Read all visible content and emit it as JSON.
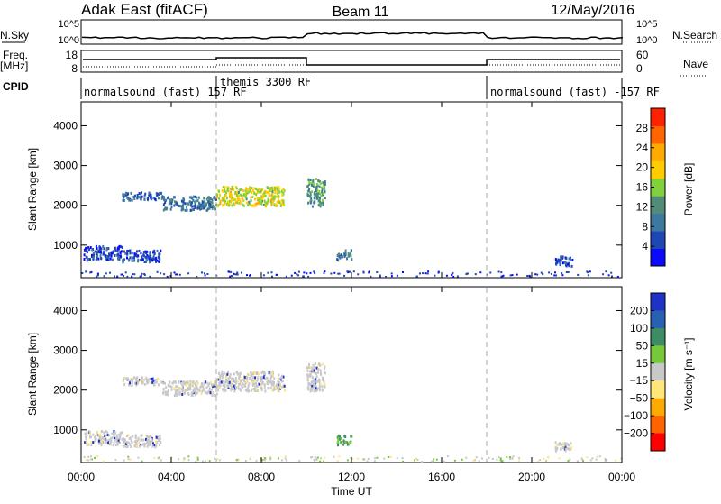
{
  "header": {
    "radar": "Adak East (fitACF)",
    "beam": "Beam 11",
    "date": "12/May/2016"
  },
  "strip_labels": {
    "nsky": "N.Sky",
    "nsky_ticks": [
      "10^5",
      "10^0"
    ],
    "nsearch": "N.Search",
    "nsearch_ticks": [
      "10^5",
      "10^0"
    ],
    "freq_line1": "Freq.",
    "freq_line2": "[MHz]",
    "freq_ticks": [
      "18",
      "8"
    ],
    "nave": "Nave",
    "nave_ticks": [
      "60",
      "0"
    ],
    "cpid": "CPID"
  },
  "cpid_segments": [
    {
      "label": "normalsound (fast) 157 RF",
      "start_hour": 0
    },
    {
      "label": "themis 3300 RF",
      "start_hour": 6
    },
    {
      "label": "normalsound (fast) -157 RF",
      "start_hour": 18
    }
  ],
  "chart_data": [
    {
      "type": "heatmap",
      "title": "",
      "xlabel": "",
      "ylabel": "Slant Range [km]",
      "xlim": [
        0,
        24
      ],
      "ylim": [
        180,
        4600
      ],
      "ytick_labels": [
        "1000",
        "2000",
        "3000",
        "4000"
      ],
      "yticks": [
        1000,
        2000,
        3000,
        4000
      ],
      "colorbar": {
        "label": "Power [dB]",
        "ticks": [
          4,
          8,
          12,
          16,
          20,
          24,
          28
        ],
        "range": [
          0,
          32
        ],
        "colors": [
          "#0a0aff",
          "#1e46b4",
          "#3c78a0",
          "#508c78",
          "#7fd23c",
          "#ffcc00",
          "#ffaa00",
          "#ff6600",
          "#ff2200"
        ]
      },
      "echo_regions": [
        {
          "t_start": 0.1,
          "t_end": 1.8,
          "r_min": 650,
          "r_max": 1000,
          "level": 5
        },
        {
          "t_start": 1.8,
          "t_end": 3.5,
          "r_min": 600,
          "r_max": 900,
          "level": 6
        },
        {
          "t_start": 1.8,
          "t_end": 3.6,
          "r_min": 2150,
          "r_max": 2350,
          "level": 7
        },
        {
          "t_start": 3.6,
          "t_end": 6.0,
          "r_min": 1900,
          "r_max": 2250,
          "level": 9
        },
        {
          "t_start": 6.0,
          "t_end": 9.0,
          "r_min": 2000,
          "r_max": 2500,
          "level": 18
        },
        {
          "t_start": 10.0,
          "t_end": 10.8,
          "r_min": 2000,
          "r_max": 2700,
          "level": 12
        },
        {
          "t_start": 11.3,
          "t_end": 12.0,
          "r_min": 650,
          "r_max": 900,
          "level": 10
        },
        {
          "t_start": 21.0,
          "t_end": 21.8,
          "r_min": 500,
          "r_max": 750,
          "level": 6
        }
      ]
    },
    {
      "type": "heatmap",
      "title": "",
      "xlabel": "Time UT",
      "ylabel": "Slant Range [km]",
      "xlim": [
        0,
        24
      ],
      "ylim": [
        180,
        4600
      ],
      "xtick_labels": [
        "00:00",
        "04:00",
        "08:00",
        "12:00",
        "16:00",
        "20:00",
        "00:00"
      ],
      "xticks": [
        0,
        4,
        8,
        12,
        16,
        20,
        24
      ],
      "ytick_labels": [
        "1000",
        "2000",
        "3000",
        "4000"
      ],
      "yticks": [
        1000,
        2000,
        3000,
        4000
      ],
      "colorbar": {
        "label": "Velocity [m s⁻¹]",
        "ticks": [
          "200",
          "100",
          "50",
          "15",
          "−15",
          "−50",
          "−100",
          "−200"
        ],
        "colors": [
          "#1e32c8",
          "#2860b4",
          "#3c8c64",
          "#78c83c",
          "#c8c8c8",
          "#ffe678",
          "#ffaa00",
          "#ff6400",
          "#ff0000"
        ]
      },
      "echo_regions": [
        {
          "t_start": 0.1,
          "t_end": 1.8,
          "r_min": 650,
          "r_max": 1000,
          "level": 0
        },
        {
          "t_start": 1.8,
          "t_end": 3.5,
          "r_min": 600,
          "r_max": 900,
          "level": 0
        },
        {
          "t_start": 1.8,
          "t_end": 3.6,
          "r_min": 2150,
          "r_max": 2350,
          "level": 0
        },
        {
          "t_start": 3.6,
          "t_end": 6.0,
          "r_min": 1900,
          "r_max": 2250,
          "level": 0
        },
        {
          "t_start": 6.0,
          "t_end": 9.0,
          "r_min": 2000,
          "r_max": 2500,
          "level": 0
        },
        {
          "t_start": 10.0,
          "t_end": 10.8,
          "r_min": 2000,
          "r_max": 2700,
          "level": 0
        },
        {
          "t_start": 11.3,
          "t_end": 12.0,
          "r_min": 650,
          "r_max": 900,
          "level": 40
        },
        {
          "t_start": 21.0,
          "t_end": 21.8,
          "r_min": 500,
          "r_max": 750,
          "level": 0
        }
      ]
    }
  ]
}
